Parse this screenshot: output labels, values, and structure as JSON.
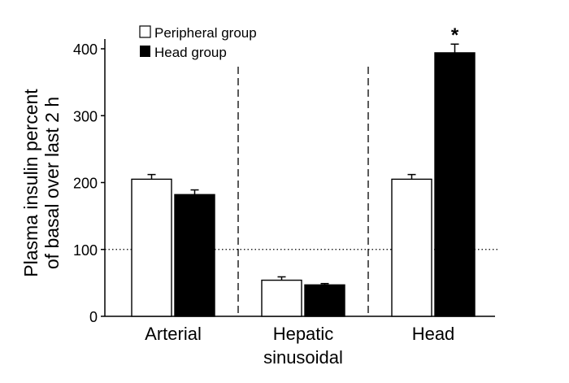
{
  "chart_data": {
    "type": "bar",
    "title": "",
    "xlabel": "",
    "ylabel": [
      "Plasma insulin percent",
      "of basal over last 2 h"
    ],
    "ylim": [
      0,
      400
    ],
    "yticks": [
      0,
      100,
      200,
      300,
      400
    ],
    "categories": [
      [
        "Arterial"
      ],
      [
        "Hepatic",
        "sinusoidal"
      ],
      [
        "Head"
      ]
    ],
    "series": [
      {
        "name": "Peripheral group",
        "color": "#ffffff",
        "values": [
          205,
          54,
          205
        ],
        "errors": [
          7,
          5,
          7
        ]
      },
      {
        "name": "Head group",
        "color": "#000000",
        "values": [
          182,
          47,
          394
        ],
        "errors": [
          7,
          2,
          13
        ]
      }
    ],
    "reference_line": 100,
    "annotations": [
      {
        "category": "Head",
        "series": "Head group",
        "text": "*"
      }
    ],
    "legend": "top-left",
    "grid": false
  }
}
